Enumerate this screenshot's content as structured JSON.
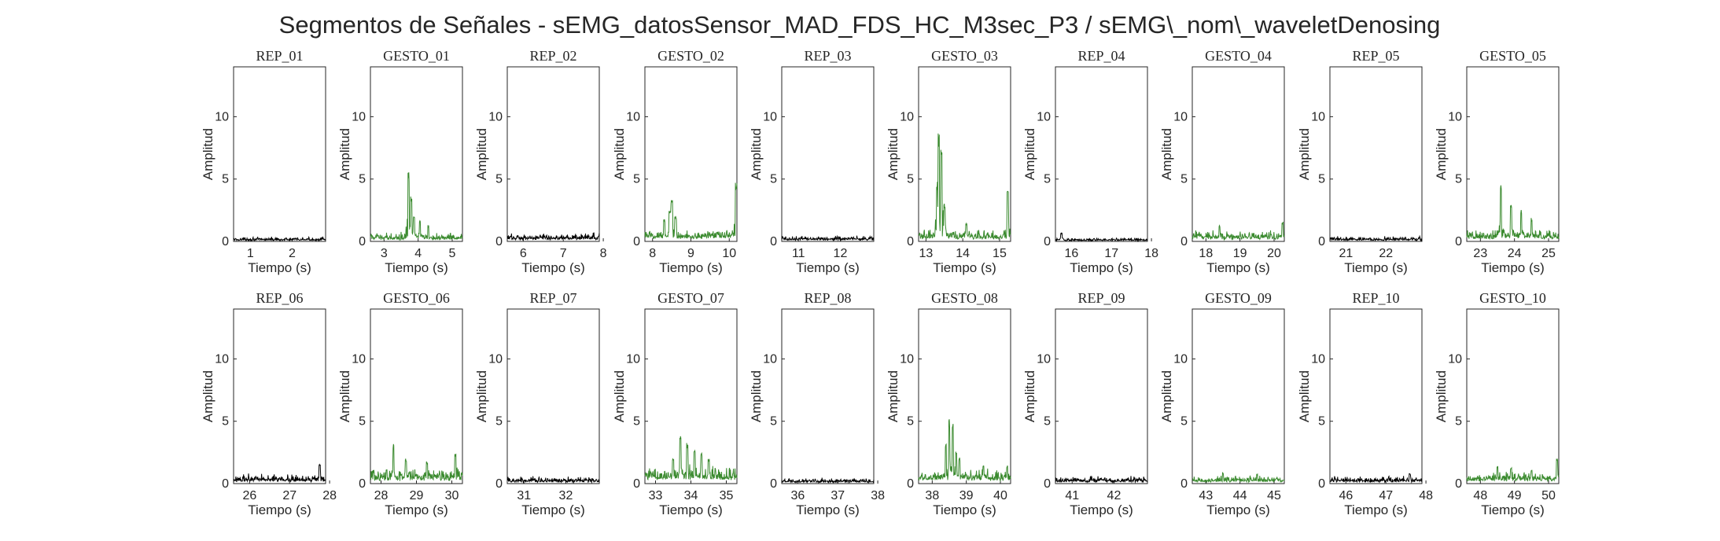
{
  "figure_title": "Segmentos de Señales - sEMG_datosSensor_MAD_FDS_HC_M3sec_P3 / sEMG\\_nom\\_waveletDenosing",
  "colors": {
    "rep": "#000000",
    "gesto": "#3a8a2e",
    "axis": "#262626"
  },
  "chart_data": [
    {
      "type": "line",
      "title": "REP_01",
      "xlabel": "Tiempo (s)",
      "ylabel": "Amplitud",
      "xlim": [
        0.6,
        2.8
      ],
      "ylim": [
        0,
        14
      ],
      "xticks": [
        1,
        2
      ],
      "yticks": [
        0,
        5,
        10
      ],
      "kind": "rep",
      "profile": {
        "base": 0.22,
        "peaks": []
      }
    },
    {
      "type": "line",
      "title": "GESTO_01",
      "xlabel": "Tiempo (s)",
      "ylabel": "Amplitud",
      "xlim": [
        2.6,
        5.3
      ],
      "ylim": [
        0,
        14
      ],
      "xticks": [
        3,
        4,
        5
      ],
      "yticks": [
        0,
        5,
        10
      ],
      "kind": "gesto",
      "profile": {
        "base": 0.45,
        "peaks": [
          [
            3.72,
            5.6
          ],
          [
            3.8,
            3.7
          ],
          [
            3.88,
            2.0
          ],
          [
            4.05,
            1.8
          ],
          [
            4.3,
            1.3
          ]
        ]
      }
    },
    {
      "type": "line",
      "title": "REP_02",
      "xlabel": "Tiempo (s)",
      "ylabel": "Amplitud",
      "xlim": [
        5.6,
        7.9
      ],
      "ylim": [
        0,
        14
      ],
      "xticks": [
        6,
        7,
        8
      ],
      "yticks": [
        0,
        5,
        10
      ],
      "kind": "rep",
      "profile": {
        "base": 0.42,
        "peaks": []
      }
    },
    {
      "type": "line",
      "title": "GESTO_02",
      "xlabel": "Tiempo (s)",
      "ylabel": "Amplitud",
      "xlim": [
        7.8,
        10.2
      ],
      "ylim": [
        0,
        14
      ],
      "xticks": [
        8,
        9,
        10
      ],
      "yticks": [
        0,
        5,
        10
      ],
      "kind": "gesto",
      "profile": {
        "base": 0.65,
        "peaks": [
          [
            8.5,
            3.4
          ],
          [
            8.45,
            2.5
          ],
          [
            8.6,
            2.1
          ],
          [
            8.3,
            1.8
          ],
          [
            10.18,
            4.8
          ]
        ]
      }
    },
    {
      "type": "line",
      "title": "REP_03",
      "xlabel": "Tiempo (s)",
      "ylabel": "Amplitud",
      "xlim": [
        10.6,
        12.8
      ],
      "ylim": [
        0,
        14
      ],
      "xticks": [
        11,
        12
      ],
      "yticks": [
        0,
        5,
        10
      ],
      "kind": "rep",
      "profile": {
        "base": 0.3,
        "peaks": []
      }
    },
    {
      "type": "line",
      "title": "GESTO_03",
      "xlabel": "Tiempo (s)",
      "ylabel": "Amplitud",
      "xlim": [
        12.8,
        15.3
      ],
      "ylim": [
        0,
        14
      ],
      "xticks": [
        13,
        14,
        15
      ],
      "yticks": [
        0,
        5,
        10
      ],
      "kind": "gesto",
      "profile": {
        "base": 0.6,
        "peaks": [
          [
            13.35,
            8.9
          ],
          [
            13.42,
            7.6
          ],
          [
            13.3,
            4.8
          ],
          [
            13.5,
            3.1
          ],
          [
            15.22,
            4.3
          ],
          [
            14.1,
            1.5
          ]
        ]
      }
    },
    {
      "type": "line",
      "title": "REP_04",
      "xlabel": "Tiempo (s)",
      "ylabel": "Amplitud",
      "xlim": [
        15.6,
        17.9
      ],
      "ylim": [
        0,
        14
      ],
      "xticks": [
        16,
        17,
        18
      ],
      "yticks": [
        0,
        5,
        10
      ],
      "kind": "rep",
      "profile": {
        "base": 0.18,
        "peaks": [
          [
            15.75,
            0.7
          ]
        ]
      }
    },
    {
      "type": "line",
      "title": "GESTO_04",
      "xlabel": "Tiempo (s)",
      "ylabel": "Amplitud",
      "xlim": [
        17.6,
        20.3
      ],
      "ylim": [
        0,
        14
      ],
      "xticks": [
        18,
        19,
        20
      ],
      "yticks": [
        0,
        5,
        10
      ],
      "kind": "gesto",
      "profile": {
        "base": 0.55,
        "peaks": [
          [
            18.4,
            1.3
          ],
          [
            20.25,
            1.6
          ]
        ]
      }
    },
    {
      "type": "line",
      "title": "REP_05",
      "xlabel": "Tiempo (s)",
      "ylabel": "Amplitud",
      "xlim": [
        20.6,
        22.9
      ],
      "ylim": [
        0,
        14
      ],
      "xticks": [
        21,
        22
      ],
      "yticks": [
        0,
        5,
        10
      ],
      "kind": "rep",
      "profile": {
        "base": 0.25,
        "peaks": []
      }
    },
    {
      "type": "line",
      "title": "GESTO_05",
      "xlabel": "Tiempo (s)",
      "ylabel": "Amplitud",
      "xlim": [
        22.6,
        25.3
      ],
      "ylim": [
        0,
        14
      ],
      "xticks": [
        23,
        24,
        25
      ],
      "yticks": [
        0,
        5,
        10
      ],
      "kind": "gesto",
      "profile": {
        "base": 0.6,
        "peaks": [
          [
            23.6,
            4.6
          ],
          [
            23.9,
            3.2
          ],
          [
            24.2,
            2.6
          ],
          [
            24.5,
            1.9
          ]
        ]
      }
    },
    {
      "type": "line",
      "title": "REP_06",
      "xlabel": "Tiempo (s)",
      "ylabel": "Amplitud",
      "xlim": [
        25.6,
        27.9
      ],
      "ylim": [
        0,
        14
      ],
      "xticks": [
        26,
        27,
        28
      ],
      "yticks": [
        0,
        5,
        10
      ],
      "kind": "rep",
      "profile": {
        "base": 0.5,
        "peaks": [
          [
            27.75,
            1.7
          ]
        ]
      }
    },
    {
      "type": "line",
      "title": "GESTO_06",
      "xlabel": "Tiempo (s)",
      "ylabel": "Amplitud",
      "xlim": [
        27.7,
        30.3
      ],
      "ylim": [
        0,
        14
      ],
      "xticks": [
        28,
        29,
        30
      ],
      "yticks": [
        0,
        5,
        10
      ],
      "kind": "gesto",
      "profile": {
        "base": 0.8,
        "peaks": [
          [
            28.35,
            3.2
          ],
          [
            28.7,
            2.0
          ],
          [
            29.3,
            1.8
          ],
          [
            30.1,
            2.4
          ]
        ]
      }
    },
    {
      "type": "line",
      "title": "REP_07",
      "xlabel": "Tiempo (s)",
      "ylabel": "Amplitud",
      "xlim": [
        30.6,
        32.8
      ],
      "ylim": [
        0,
        14
      ],
      "xticks": [
        31,
        32
      ],
      "yticks": [
        0,
        5,
        10
      ],
      "kind": "rep",
      "profile": {
        "base": 0.35,
        "peaks": []
      }
    },
    {
      "type": "line",
      "title": "GESTO_07",
      "xlabel": "Tiempo (s)",
      "ylabel": "Amplitud",
      "xlim": [
        32.7,
        35.3
      ],
      "ylim": [
        0,
        14
      ],
      "xticks": [
        33,
        34,
        35
      ],
      "yticks": [
        0,
        5,
        10
      ],
      "kind": "gesto",
      "profile": {
        "base": 0.9,
        "peaks": [
          [
            33.7,
            3.8
          ],
          [
            33.9,
            3.3
          ],
          [
            34.1,
            2.9
          ],
          [
            34.3,
            2.5
          ],
          [
            34.5,
            2.0
          ],
          [
            33.5,
            2.2
          ]
        ]
      }
    },
    {
      "type": "line",
      "title": "REP_08",
      "xlabel": "Tiempo (s)",
      "ylabel": "Amplitud",
      "xlim": [
        35.6,
        37.9
      ],
      "ylim": [
        0,
        14
      ],
      "xticks": [
        36,
        37,
        38
      ],
      "yticks": [
        0,
        5,
        10
      ],
      "kind": "rep",
      "profile": {
        "base": 0.28,
        "peaks": []
      }
    },
    {
      "type": "line",
      "title": "GESTO_08",
      "xlabel": "Tiempo (s)",
      "ylabel": "Amplitud",
      "xlim": [
        37.6,
        40.3
      ],
      "ylim": [
        0,
        14
      ],
      "xticks": [
        38,
        39,
        40
      ],
      "yticks": [
        0,
        5,
        10
      ],
      "kind": "gesto",
      "profile": {
        "base": 0.75,
        "peaks": [
          [
            38.5,
            5.2
          ],
          [
            38.6,
            5.0
          ],
          [
            38.4,
            3.2
          ],
          [
            38.7,
            2.7
          ],
          [
            38.8,
            2.1
          ],
          [
            39.5,
            1.6
          ],
          [
            40.2,
            1.5
          ]
        ]
      }
    },
    {
      "type": "line",
      "title": "REP_09",
      "xlabel": "Tiempo (s)",
      "ylabel": "Amplitud",
      "xlim": [
        40.6,
        42.8
      ],
      "ylim": [
        0,
        14
      ],
      "xticks": [
        41,
        42
      ],
      "yticks": [
        0,
        5,
        10
      ],
      "kind": "rep",
      "profile": {
        "base": 0.38,
        "peaks": []
      }
    },
    {
      "type": "line",
      "title": "GESTO_09",
      "xlabel": "Tiempo (s)",
      "ylabel": "Amplitud",
      "xlim": [
        42.6,
        45.3
      ],
      "ylim": [
        0,
        14
      ],
      "xticks": [
        43,
        44,
        45
      ],
      "yticks": [
        0,
        5,
        10
      ],
      "kind": "gesto",
      "profile": {
        "base": 0.4,
        "peaks": [
          [
            43.5,
            0.9
          ],
          [
            44.5,
            0.8
          ]
        ]
      }
    },
    {
      "type": "line",
      "title": "REP_10",
      "xlabel": "Tiempo (s)",
      "ylabel": "Amplitud",
      "xlim": [
        45.6,
        47.9
      ],
      "ylim": [
        0,
        14
      ],
      "xticks": [
        46,
        47,
        48
      ],
      "yticks": [
        0,
        5,
        10
      ],
      "kind": "rep",
      "profile": {
        "base": 0.38,
        "peaks": [
          [
            47.6,
            0.8
          ]
        ]
      }
    },
    {
      "type": "line",
      "title": "GESTO_10",
      "xlabel": "Tiempo (s)",
      "ylabel": "Amplitud",
      "xlim": [
        47.6,
        50.3
      ],
      "ylim": [
        0,
        14
      ],
      "xticks": [
        48,
        49,
        50
      ],
      "yticks": [
        0,
        5,
        10
      ],
      "kind": "gesto",
      "profile": {
        "base": 0.6,
        "peaks": [
          [
            48.5,
            1.4
          ],
          [
            48.9,
            1.3
          ],
          [
            49.5,
            1.2
          ],
          [
            50.25,
            2.1
          ]
        ]
      }
    }
  ]
}
